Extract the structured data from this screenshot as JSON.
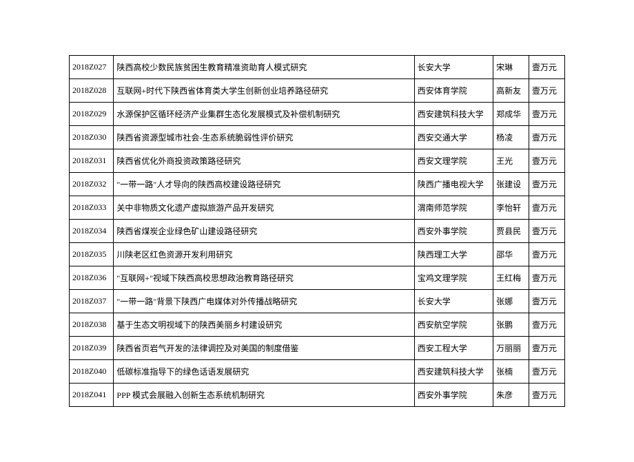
{
  "table": {
    "columns": {
      "id_width": 62,
      "title_width": 420,
      "org_width": 110,
      "person_width": 50,
      "amount_width": 50
    },
    "rows": [
      {
        "id": "2018Z027",
        "title": "陕西高校少数民族贫困生教育精准资助育人模式研究",
        "org": "长安大学",
        "person": "宋琳",
        "amount": "壹万元"
      },
      {
        "id": "2018Z028",
        "title": "互联网+时代下陕西省体育类大学生创新创业培养路径研究",
        "org": "西安体育学院",
        "person": "高新友",
        "amount": "壹万元"
      },
      {
        "id": "2018Z029",
        "title": "水源保护区循环经济产业集群生态化发展模式及补偿机制研究",
        "org": "西安建筑科技大学",
        "person": "郑成华",
        "amount": "壹万元"
      },
      {
        "id": "2018Z030",
        "title": "陕西省资源型城市社会-生态系统脆弱性评价研究",
        "org": "西安交通大学",
        "person": "杨凌",
        "amount": "壹万元"
      },
      {
        "id": "2018Z031",
        "title": "陕西省优化外商投资政策路径研究",
        "org": "西安文理学院",
        "person": "王光",
        "amount": "壹万元"
      },
      {
        "id": "2018Z032",
        "title": "\"一带一路\"人才导向的陕西高校建设路径研究",
        "org": "陕西广播电视大学",
        "person": "张建设",
        "amount": "壹万元"
      },
      {
        "id": "2018Z033",
        "title": "关中非物质文化遗产虚拟旅游产品开发研究",
        "org": "渭南师范学院",
        "person": "李怡轩",
        "amount": "壹万元"
      },
      {
        "id": "2018Z034",
        "title": "陕西省煤炭企业绿色矿山建设路径研究",
        "org": "西安外事学院",
        "person": "贾县民",
        "amount": "壹万元"
      },
      {
        "id": "2018Z035",
        "title": "川陕老区红色资源开发利用研究",
        "org": "陕西理工大学",
        "person": "邵华",
        "amount": "壹万元"
      },
      {
        "id": "2018Z036",
        "title": "\"互联网+\"视域下陕西高校思想政治教育路径研究",
        "org": "宝鸡文理学院",
        "person": "王红梅",
        "amount": "壹万元"
      },
      {
        "id": "2018Z037",
        "title": "\"一带一路\"背景下陕西广电媒体对外传播战略研究",
        "org": "长安大学",
        "person": "张娜",
        "amount": "壹万元"
      },
      {
        "id": "2018Z038",
        "title": "基于生态文明视域下的陕西美丽乡村建设研究",
        "org": "西安航空学院",
        "person": "张鹏",
        "amount": "壹万元"
      },
      {
        "id": "2018Z039",
        "title": "陕西省页岩气开发的法律调控及对美国的制度借鉴",
        "org": "西安工程大学",
        "person": "万丽丽",
        "amount": "壹万元"
      },
      {
        "id": "2018Z040",
        "title": "低碳标准指导下的绿色话语发展研究",
        "org": "西安建筑科技大学",
        "person": "张楠",
        "amount": "壹万元"
      },
      {
        "id": "2018Z041",
        "title": "PPP 模式会展融入创新生态系统机制研究",
        "org": "西安外事学院",
        "person": "朱彦",
        "amount": "壹万元"
      }
    ]
  }
}
